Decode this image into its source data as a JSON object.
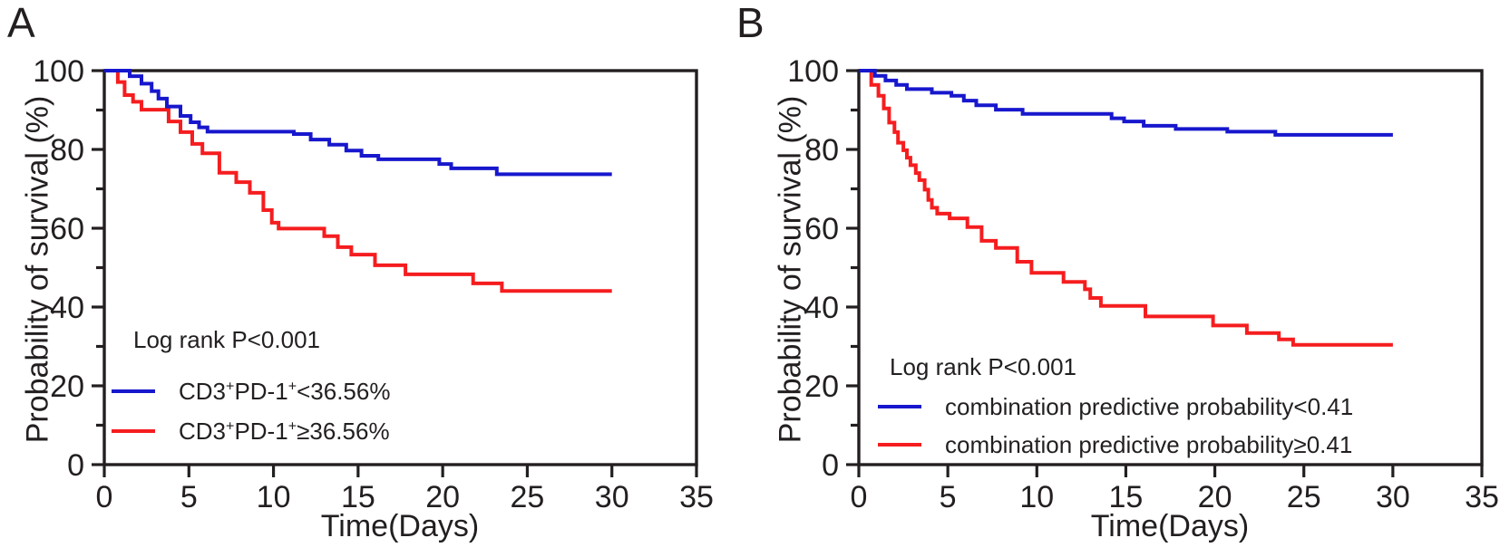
{
  "figure": {
    "background": "#ffffff",
    "ink_color": "#231f20",
    "panels": [
      {
        "letter": "A",
        "y_axis_title": "Probability of survival (%)",
        "x_axis_title": "Time(Days)",
        "logrank_text": "Log rank P<0.001"
      },
      {
        "letter": "B",
        "y_axis_title": "Probability of survival (%)",
        "x_axis_title": "Time(Days)",
        "logrank_text": "Log rank P<0.001"
      }
    ]
  },
  "chart_data": [
    {
      "type": "line",
      "subtype": "kaplan-meier-step",
      "panel": "A",
      "title": "",
      "xlabel": "Time(Days)",
      "ylabel": "Probability of survival (%)",
      "xlim": [
        0,
        35
      ],
      "ylim": [
        0,
        100
      ],
      "x_ticks": [
        0,
        5,
        10,
        15,
        20,
        25,
        30,
        35
      ],
      "y_ticks_major": [
        0,
        20,
        40,
        60,
        80,
        100
      ],
      "y_ticks_minor": [
        10,
        30,
        50,
        70,
        90
      ],
      "grid": false,
      "frame": true,
      "annotation": "Log rank P<0.001",
      "legend_position": "lower-left",
      "series": [
        {
          "name": "CD3+PD-1+>=36.56%",
          "color": "#f51d1f",
          "points": [
            [
              0,
              100
            ],
            [
              0.8,
              97.1
            ],
            [
              1.2,
              93.8
            ],
            [
              1.7,
              92.1
            ],
            [
              2.2,
              90.1
            ],
            [
              3.8,
              87.1
            ],
            [
              4.5,
              84.4
            ],
            [
              5.2,
              81.4
            ],
            [
              5.8,
              79.0
            ],
            [
              6.8,
              74.1
            ],
            [
              7.8,
              71.7
            ],
            [
              8.6,
              69.0
            ],
            [
              9.4,
              64.6
            ],
            [
              9.9,
              61.4
            ],
            [
              10.3,
              59.9
            ],
            [
              13.0,
              58.0
            ],
            [
              13.8,
              55.2
            ],
            [
              14.6,
              53.3
            ],
            [
              16.0,
              50.6
            ],
            [
              17.8,
              48.3
            ],
            [
              21.8,
              46.0
            ],
            [
              23.5,
              44.1
            ],
            [
              30,
              44.1
            ]
          ]
        },
        {
          "name": "CD3+PD-1+<36.56%",
          "color": "#1717cd",
          "points": [
            [
              0,
              100
            ],
            [
              1.5,
              98.6
            ],
            [
              2.2,
              96.7
            ],
            [
              2.8,
              94.8
            ],
            [
              3.2,
              92.9
            ],
            [
              3.7,
              90.9
            ],
            [
              4.5,
              88.5
            ],
            [
              5.1,
              86.9
            ],
            [
              5.6,
              85.6
            ],
            [
              6.1,
              84.5
            ],
            [
              11.2,
              83.9
            ],
            [
              12.2,
              82.5
            ],
            [
              13.3,
              81.2
            ],
            [
              14.3,
              79.7
            ],
            [
              15.2,
              78.4
            ],
            [
              16.2,
              77.5
            ],
            [
              19.8,
              76.3
            ],
            [
              20.5,
              75.2
            ],
            [
              23.2,
              73.7
            ],
            [
              30,
              73.7
            ]
          ]
        }
      ],
      "legend": {
        "entries": [
          {
            "color": "#1717cd",
            "label_parts": [
              {
                "t": "CD3"
              },
              {
                "sup": "+"
              },
              {
                "t": "PD-1"
              },
              {
                "sup": "+"
              },
              {
                "t": "<36.56%"
              }
            ]
          },
          {
            "color": "#f51d1f",
            "label_parts": [
              {
                "t": "CD3"
              },
              {
                "sup": "+"
              },
              {
                "t": "PD-1"
              },
              {
                "sup": "+"
              },
              {
                "t": "≥36.56%"
              }
            ]
          }
        ]
      }
    },
    {
      "type": "line",
      "subtype": "kaplan-meier-step",
      "panel": "B",
      "title": "",
      "xlabel": "Time(Days)",
      "ylabel": "Probability of survival (%)",
      "xlim": [
        0,
        35
      ],
      "ylim": [
        0,
        100
      ],
      "x_ticks": [
        0,
        5,
        10,
        15,
        20,
        25,
        30,
        35
      ],
      "y_ticks_major": [
        0,
        20,
        40,
        60,
        80,
        100
      ],
      "y_ticks_minor": [
        10,
        30,
        50,
        70,
        90
      ],
      "grid": false,
      "frame": true,
      "annotation": "Log rank P<0.001",
      "legend_position": "lower-left",
      "series": [
        {
          "name": "combination predictive probability>=0.41",
          "color": "#f51d1f",
          "points": [
            [
              0,
              100
            ],
            [
              0.7,
              96.4
            ],
            [
              1.1,
              93.6
            ],
            [
              1.4,
              90.4
            ],
            [
              1.7,
              86.8
            ],
            [
              2.0,
              84.4
            ],
            [
              2.2,
              81.7
            ],
            [
              2.5,
              79.8
            ],
            [
              2.7,
              77.9
            ],
            [
              2.9,
              76.0
            ],
            [
              3.2,
              74.0
            ],
            [
              3.4,
              72.2
            ],
            [
              3.7,
              69.8
            ],
            [
              3.9,
              67.2
            ],
            [
              4.1,
              65.2
            ],
            [
              4.4,
              63.7
            ],
            [
              5.1,
              62.5
            ],
            [
              6.1,
              60.3
            ],
            [
              6.9,
              56.8
            ],
            [
              7.7,
              55.0
            ],
            [
              8.9,
              51.5
            ],
            [
              9.7,
              48.7
            ],
            [
              11.5,
              46.4
            ],
            [
              12.7,
              44.5
            ],
            [
              13.0,
              42.3
            ],
            [
              13.6,
              40.3
            ],
            [
              16.1,
              37.6
            ],
            [
              19.9,
              35.3
            ],
            [
              21.8,
              33.4
            ],
            [
              23.6,
              31.8
            ],
            [
              24.4,
              30.4
            ],
            [
              30,
              30.4
            ]
          ]
        },
        {
          "name": "combination predictive probability<0.41",
          "color": "#1717cd",
          "points": [
            [
              0,
              100
            ],
            [
              0.9,
              98.7
            ],
            [
              1.5,
              97.5
            ],
            [
              2.1,
              96.4
            ],
            [
              2.7,
              95.3
            ],
            [
              4.1,
              94.4
            ],
            [
              5.2,
              93.6
            ],
            [
              5.9,
              92.4
            ],
            [
              6.6,
              91.2
            ],
            [
              7.7,
              90.1
            ],
            [
              9.2,
              89.0
            ],
            [
              14.2,
              87.9
            ],
            [
              14.9,
              87.1
            ],
            [
              16.0,
              86.0
            ],
            [
              17.8,
              85.2
            ],
            [
              20.7,
              84.5
            ],
            [
              23.4,
              83.7
            ],
            [
              30,
              83.7
            ]
          ]
        }
      ],
      "legend": {
        "entries": [
          {
            "color": "#1717cd",
            "label_parts": [
              {
                "t": "combination predictive probability<0.41"
              }
            ]
          },
          {
            "color": "#f51d1f",
            "label_parts": [
              {
                "t": "combination predictive probability≥0.41"
              }
            ]
          }
        ]
      }
    }
  ]
}
